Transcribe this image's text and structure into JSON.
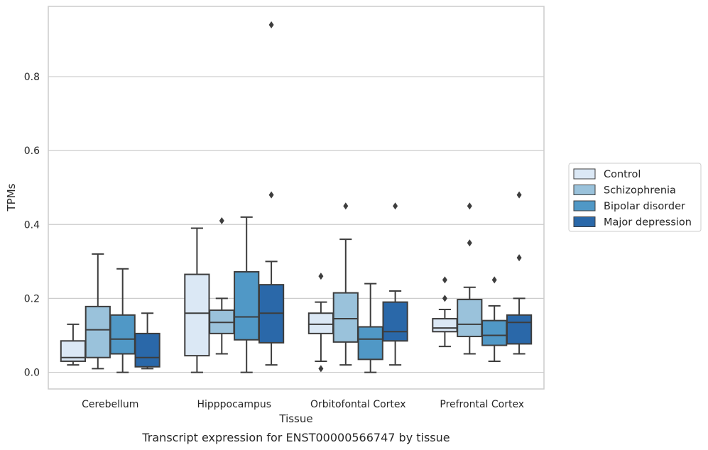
{
  "chart_data": {
    "type": "box",
    "xlabel": "Tissue",
    "ylabel": "TPMs",
    "caption": "Transcript expression for ENST00000566747 by tissue",
    "categories": [
      "Cerebellum",
      "Hipppocampus",
      "Orbitofontal Cortex",
      "Prefrontal Cortex"
    ],
    "ylim": [
      -0.045,
      0.99
    ],
    "yticks": [
      "0.0",
      "0.2",
      "0.4",
      "0.6",
      "0.8"
    ],
    "grid": "horizontal",
    "legend_position": "right-center",
    "series": [
      {
        "name": "Control",
        "color": "#dbe8f5",
        "boxes": [
          {
            "whisker_low": 0.02,
            "q1": 0.03,
            "median": 0.04,
            "q3": 0.085,
            "whisker_high": 0.13,
            "outliers": []
          },
          {
            "whisker_low": 0.0,
            "q1": 0.045,
            "median": 0.16,
            "q3": 0.265,
            "whisker_high": 0.39,
            "outliers": []
          },
          {
            "whisker_low": 0.03,
            "q1": 0.105,
            "median": 0.13,
            "q3": 0.16,
            "whisker_high": 0.19,
            "outliers": [
              0.01,
              0.26
            ]
          },
          {
            "whisker_low": 0.07,
            "q1": 0.11,
            "median": 0.12,
            "q3": 0.145,
            "whisker_high": 0.17,
            "outliers": [
              0.2,
              0.25
            ]
          }
        ]
      },
      {
        "name": "Schizophrenia",
        "color": "#9ac2db",
        "boxes": [
          {
            "whisker_low": 0.01,
            "q1": 0.04,
            "median": 0.115,
            "q3": 0.178,
            "whisker_high": 0.32,
            "outliers": []
          },
          {
            "whisker_low": 0.05,
            "q1": 0.105,
            "median": 0.135,
            "q3": 0.168,
            "whisker_high": 0.2,
            "outliers": [
              0.41
            ]
          },
          {
            "whisker_low": 0.02,
            "q1": 0.082,
            "median": 0.145,
            "q3": 0.215,
            "whisker_high": 0.36,
            "outliers": [
              0.45
            ]
          },
          {
            "whisker_low": 0.05,
            "q1": 0.097,
            "median": 0.13,
            "q3": 0.197,
            "whisker_high": 0.23,
            "outliers": [
              0.35,
              0.45
            ]
          }
        ]
      },
      {
        "name": "Bipolar disorder",
        "color": "#5098c6",
        "boxes": [
          {
            "whisker_low": 0.0,
            "q1": 0.05,
            "median": 0.09,
            "q3": 0.155,
            "whisker_high": 0.28,
            "outliers": []
          },
          {
            "whisker_low": 0.0,
            "q1": 0.088,
            "median": 0.15,
            "q3": 0.272,
            "whisker_high": 0.42,
            "outliers": []
          },
          {
            "whisker_low": 0.0,
            "q1": 0.035,
            "median": 0.09,
            "q3": 0.123,
            "whisker_high": 0.24,
            "outliers": []
          },
          {
            "whisker_low": 0.03,
            "q1": 0.073,
            "median": 0.1,
            "q3": 0.14,
            "whisker_high": 0.18,
            "outliers": [
              0.25
            ]
          }
        ]
      },
      {
        "name": "Major depression",
        "color": "#2a68a9",
        "boxes": [
          {
            "whisker_low": 0.01,
            "q1": 0.015,
            "median": 0.04,
            "q3": 0.105,
            "whisker_high": 0.16,
            "outliers": []
          },
          {
            "whisker_low": 0.02,
            "q1": 0.08,
            "median": 0.16,
            "q3": 0.237,
            "whisker_high": 0.3,
            "outliers": [
              0.48,
              0.94
            ]
          },
          {
            "whisker_low": 0.02,
            "q1": 0.085,
            "median": 0.11,
            "q3": 0.19,
            "whisker_high": 0.22,
            "outliers": [
              0.45
            ]
          },
          {
            "whisker_low": 0.05,
            "q1": 0.077,
            "median": 0.135,
            "q3": 0.155,
            "whisker_high": 0.2,
            "outliers": [
              0.31,
              0.48
            ]
          }
        ]
      }
    ]
  }
}
